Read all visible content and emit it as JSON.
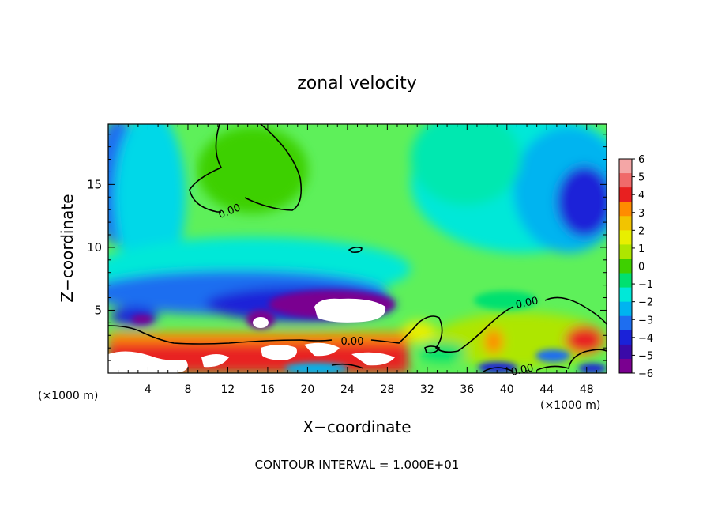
{
  "chart_data": {
    "type": "heatmap",
    "title": "zonal velocity",
    "xlabel": "X−coordinate",
    "ylabel": "Z−coordinate",
    "x_unit_left": "(×1000 m)",
    "x_unit_right": "(×1000 m)",
    "footer": "CONTOUR INTERVAL = 1.000E+01",
    "xlim": [
      0,
      50
    ],
    "ylim": [
      0,
      19.8
    ],
    "x_ticks": [
      4,
      8,
      12,
      16,
      20,
      24,
      28,
      32,
      36,
      40,
      44,
      48
    ],
    "y_ticks": [
      5,
      10,
      15
    ],
    "colorbar": {
      "labels": [
        "6",
        "5",
        "4",
        "3",
        "2",
        "1",
        "0",
        "−1",
        "−2",
        "−3",
        "−4",
        "−5",
        "−6"
      ],
      "colors": [
        "#f4a6a6",
        "#f06a6a",
        "#e82020",
        "#ff8c00",
        "#f2c400",
        "#e8ef00",
        "#aee600",
        "#3ed000",
        "#00e070",
        "#00e8d8",
        "#00b4f0",
        "#1e6ef0",
        "#1a22d8",
        "#3a0aa8",
        "#7a0090"
      ]
    },
    "contour_labels": [
      "0.00",
      "0.00",
      "0.00",
      "0.00"
    ],
    "grid": false
  }
}
